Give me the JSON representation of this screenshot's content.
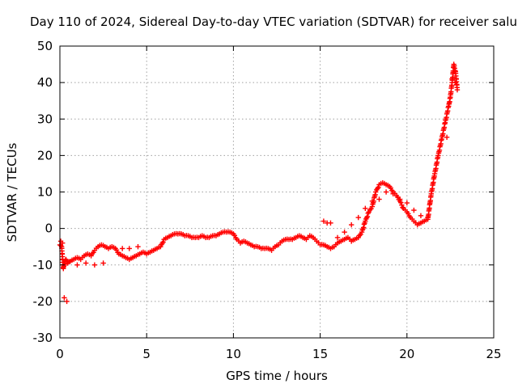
{
  "chart_data": {
    "type": "scatter",
    "title": "Day 110 of 2024, Sidereal Day-to-day VTEC variation (SDTVAR) for receiver salu",
    "xlabel": "GPS time / hours",
    "ylabel": "SDTVAR / TECUs",
    "xlim": [
      0,
      25
    ],
    "ylim": [
      -30,
      50
    ],
    "xticks": [
      "0",
      "5",
      "10",
      "15",
      "20",
      "25"
    ],
    "yticks": [
      "-30",
      "-20",
      "-10",
      "0",
      "10",
      "20",
      "30",
      "40",
      "50"
    ],
    "grid": true,
    "marker": "plus",
    "color": "#ff0000",
    "series": [
      {
        "name": "SDTVAR",
        "x": [
          0.0,
          0.1,
          0.2,
          0.3,
          0.35,
          0.45,
          0.6,
          0.8,
          1.0,
          1.2,
          1.4,
          1.6,
          1.8,
          2.0,
          2.2,
          2.4,
          2.6,
          2.8,
          3.0,
          3.2,
          3.4,
          3.6,
          3.8,
          4.0,
          4.2,
          4.4,
          4.6,
          4.8,
          5.0,
          5.2,
          5.4,
          5.6,
          5.8,
          6.0,
          6.2,
          6.4,
          6.6,
          6.8,
          7.0,
          7.2,
          7.4,
          7.6,
          7.8,
          8.0,
          8.2,
          8.4,
          8.6,
          8.8,
          9.0,
          9.2,
          9.4,
          9.6,
          9.8,
          10.0,
          10.2,
          10.4,
          10.6,
          10.8,
          11.0,
          11.2,
          11.4,
          11.6,
          11.8,
          12.0,
          12.2,
          12.4,
          12.6,
          12.8,
          13.0,
          13.2,
          13.4,
          13.6,
          13.8,
          14.0,
          14.2,
          14.4,
          14.6,
          14.8,
          15.0,
          15.2,
          15.4,
          15.6,
          15.8,
          16.0,
          16.2,
          16.4,
          16.6,
          16.8,
          17.0,
          17.2,
          17.4,
          17.6,
          17.8,
          18.0,
          18.2,
          18.4,
          18.6,
          18.8,
          19.0,
          19.2,
          19.4,
          19.6,
          19.8,
          20.0,
          20.2,
          20.4,
          20.6,
          20.8,
          21.0,
          21.2,
          21.4,
          21.6,
          21.8,
          22.0,
          22.2,
          22.4,
          22.5,
          22.6,
          22.7,
          22.8,
          22.9
        ],
        "y": [
          -4.5,
          -5.0,
          -11.0,
          -9.0,
          -8.5,
          -9.5,
          -9.0,
          -8.5,
          -8.0,
          -8.5,
          -7.5,
          -7.0,
          -7.5,
          -6.0,
          -5.0,
          -4.5,
          -5.0,
          -5.5,
          -5.0,
          -5.5,
          -7.0,
          -7.5,
          -8.0,
          -8.5,
          -8.0,
          -7.5,
          -7.0,
          -6.5,
          -7.0,
          -6.5,
          -6.0,
          -5.5,
          -5.0,
          -3.0,
          -2.5,
          -2.0,
          -1.5,
          -1.5,
          -1.5,
          -2.0,
          -2.0,
          -2.5,
          -2.5,
          -2.5,
          -2.0,
          -2.5,
          -2.5,
          -2.0,
          -2.0,
          -1.5,
          -1.0,
          -1.0,
          -1.0,
          -1.5,
          -3.0,
          -4.0,
          -3.5,
          -4.0,
          -4.5,
          -5.0,
          -5.0,
          -5.5,
          -5.5,
          -5.5,
          -6.0,
          -5.0,
          -4.5,
          -3.5,
          -3.0,
          -3.0,
          -3.0,
          -2.5,
          -2.0,
          -2.5,
          -3.0,
          -2.0,
          -2.5,
          -3.5,
          -4.5,
          -4.5,
          -5.0,
          -5.5,
          -5.0,
          -4.0,
          -3.5,
          -3.0,
          -2.5,
          -3.5,
          -3.0,
          -2.5,
          -1.0,
          2.0,
          4.5,
          6.0,
          10.0,
          12.0,
          12.5,
          12.0,
          11.5,
          10.0,
          9.0,
          7.5,
          5.5,
          4.5,
          3.0,
          2.0,
          1.0,
          1.5,
          2.0,
          2.5,
          9.5,
          15.0,
          20.0,
          24.5,
          29.0,
          33.5,
          36.0,
          40.0,
          45.0,
          43.0,
          38.0
        ],
        "x2": [
          0.05,
          0.15,
          0.25,
          0.4,
          1.0,
          1.5,
          2.0,
          2.5,
          3.6,
          4.0,
          4.5,
          15.2,
          15.4,
          15.6,
          16.0,
          16.4,
          16.8,
          17.2,
          17.6,
          18.0,
          18.4,
          18.8,
          19.2,
          19.6,
          20.0,
          20.4,
          20.8,
          21.2,
          22.3,
          22.6,
          22.8
        ],
        "y2": [
          -3.5,
          -4.0,
          -19.0,
          -20.0,
          -10.0,
          -9.5,
          -10.0,
          -9.5,
          -5.5,
          -5.5,
          -5.0,
          2.0,
          1.5,
          1.5,
          -2.5,
          -1.0,
          1.0,
          3.0,
          5.5,
          7.5,
          8.0,
          10.0,
          9.5,
          8.0,
          7.0,
          5.0,
          3.5,
          3.0,
          25.0,
          41.0,
          40.0
        ]
      }
    ]
  }
}
